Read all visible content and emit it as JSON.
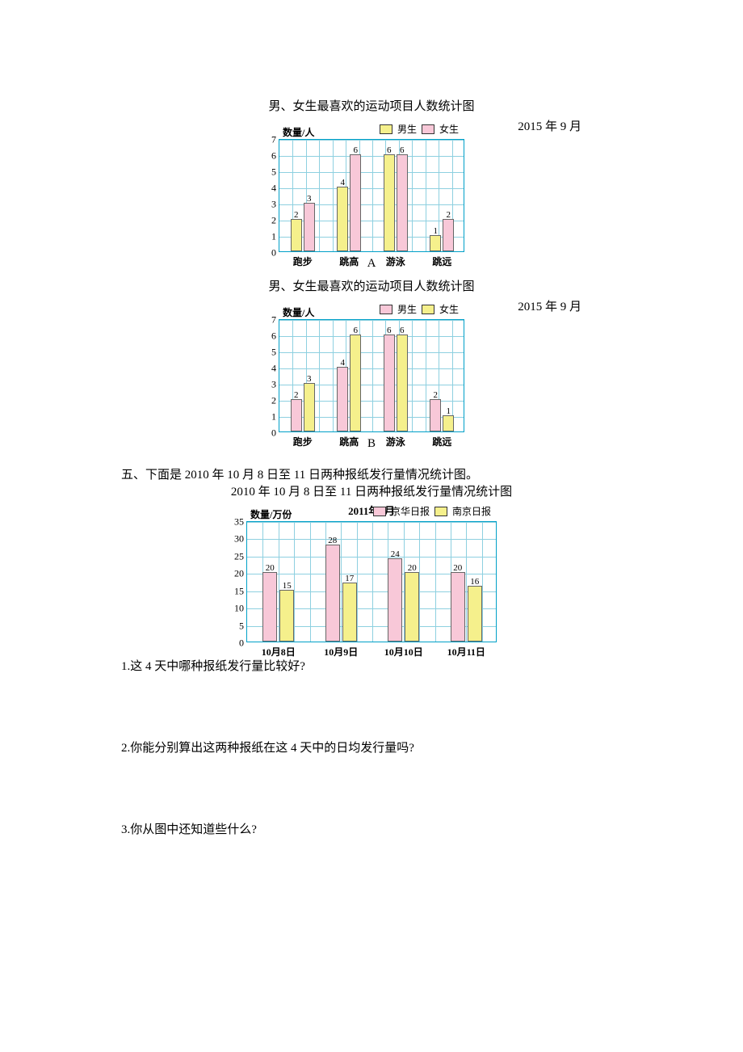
{
  "colors": {
    "boy_yellow": "#f5f08c",
    "girl_pink": "#f8c8d8",
    "jinghua_pink": "#f8c8d8",
    "nanjing_yellow": "#f5f08c",
    "grid": "#8ed0e0",
    "border": "#00a0c8"
  },
  "chartA": {
    "title": "男、女生最喜欢的运动项目人数统计图",
    "date": "2015 年 9 月",
    "letter": "A",
    "y_title": "数量/人",
    "y_max": 7,
    "y_step": 1,
    "legend": [
      {
        "label": "男生",
        "color": "#f5f08c"
      },
      {
        "label": "女生",
        "color": "#f8c8d8"
      }
    ],
    "categories": [
      "跑步",
      "跳高",
      "游泳",
      "跳远"
    ],
    "series": [
      {
        "name": "男生",
        "color": "#f5f08c",
        "values": [
          2,
          4,
          6,
          1
        ]
      },
      {
        "name": "女生",
        "color": "#f8c8d8",
        "values": [
          3,
          6,
          6,
          2
        ]
      }
    ]
  },
  "chartB": {
    "title": "男、女生最喜欢的运动项目人数统计图",
    "date": "2015 年 9 月",
    "letter": "B",
    "y_title": "数量/人",
    "y_max": 7,
    "y_step": 1,
    "legend": [
      {
        "label": "男生",
        "color": "#f8c8d8"
      },
      {
        "label": "女生",
        "color": "#f5f08c"
      }
    ],
    "categories": [
      "跑步",
      "跳高",
      "游泳",
      "跳远"
    ],
    "series": [
      {
        "name": "男生",
        "color": "#f8c8d8",
        "values": [
          2,
          4,
          6,
          2
        ]
      },
      {
        "name": "女生",
        "color": "#f5f08c",
        "values": [
          3,
          6,
          6,
          1
        ]
      }
    ]
  },
  "section5": {
    "heading": "五、下面是 2010 年 10 月 8 日至 11 日两种报纸发行量情况统计图。",
    "chart_title": "2010 年 10 月 8 日至 11 日两种报纸发行量情况统计图",
    "chart_date": "2011年1月",
    "y_title": "数量/万份",
    "y_max": 35,
    "y_step": 5,
    "legend": [
      {
        "label": "京华日报",
        "color": "#f8c8d8"
      },
      {
        "label": "南京日报",
        "color": "#f5f08c"
      }
    ],
    "categories": [
      "10月8日",
      "10月9日",
      "10月10日",
      "10月11日"
    ],
    "series": [
      {
        "name": "京华日报",
        "color": "#f8c8d8",
        "values": [
          20,
          28,
          24,
          20
        ]
      },
      {
        "name": "南京日报",
        "color": "#f5f08c",
        "values": [
          15,
          17,
          20,
          16
        ]
      }
    ],
    "q1": "1.这 4 天中哪种报纸发行量比较好?",
    "q2": "2.你能分别算出这两种报纸在这 4 天中的日均发行量吗?",
    "q3": "3.你从图中还知道些什么?"
  }
}
